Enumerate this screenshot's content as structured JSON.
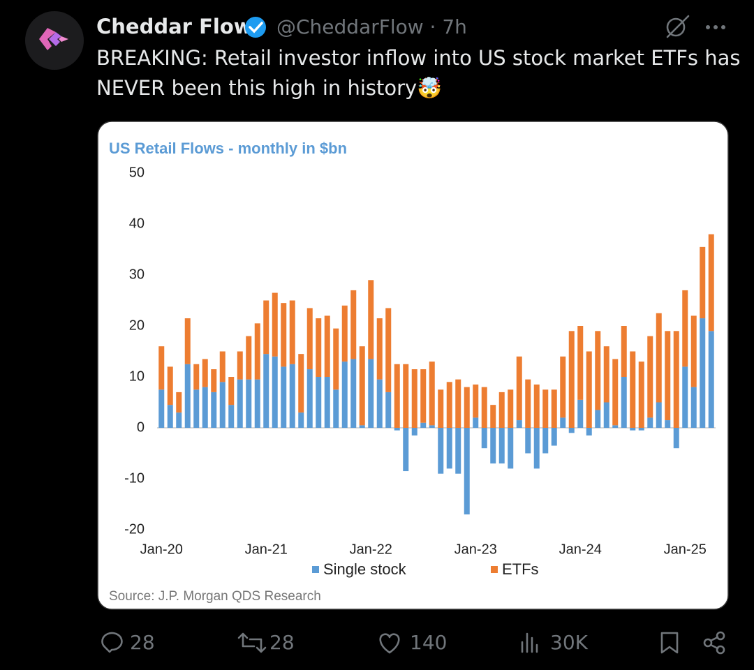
{
  "tweet": {
    "name": "Cheddar Flow",
    "meta": "@CheddarFlow · 7h",
    "text_lines": [
      "BREAKING: Retail investor inflow into US stock market ETFs has",
      "NEVER been this high in history🤯"
    ],
    "actions": {
      "replies": "28",
      "reposts": "28",
      "likes": "140",
      "views": "30K"
    }
  },
  "chart_data": {
    "type": "stacked-bar",
    "title": "US Retail Flows - monthly in $bn",
    "source": "Source: J.P. Morgan QDS Research",
    "categories": [
      "Jan-20",
      null,
      null,
      null,
      null,
      null,
      null,
      null,
      null,
      null,
      null,
      null,
      "Jan-21",
      null,
      null,
      null,
      null,
      null,
      null,
      null,
      null,
      null,
      null,
      null,
      "Jan-22",
      null,
      null,
      null,
      null,
      null,
      null,
      null,
      null,
      null,
      null,
      null,
      "Jan-23",
      null,
      null,
      null,
      null,
      null,
      null,
      null,
      null,
      null,
      null,
      null,
      "Jan-24",
      null,
      null,
      null,
      null,
      null,
      null,
      null,
      null,
      null,
      null,
      null,
      "Jan-25",
      null,
      null,
      null
    ],
    "series": [
      {
        "name": "Single stock",
        "color": "#5b9bd5",
        "values": [
          7.5,
          4.5,
          3,
          12.5,
          7.5,
          8,
          7,
          9,
          4.5,
          9.5,
          9.5,
          9.5,
          14.5,
          14,
          12,
          12.5,
          3,
          11.5,
          10,
          10,
          7.5,
          13,
          13.5,
          0.5,
          13.5,
          9.5,
          7,
          -0.5,
          -8.5,
          -1.5,
          1,
          0.5,
          -9,
          -8,
          -9,
          -17,
          2,
          -4,
          -7,
          -7,
          -8,
          1.5,
          -5,
          -8,
          -5,
          -3.5,
          2,
          -1,
          5.5,
          -1.5,
          3.5,
          5,
          0.5,
          10,
          -0.5,
          -0.5,
          2,
          5,
          1.5,
          -4,
          12,
          8,
          21.5,
          19
        ]
      },
      {
        "name": "ETFs",
        "color": "#ed7d31",
        "values": [
          8.5,
          7.5,
          4,
          9,
          5,
          5.5,
          4.5,
          6,
          5.5,
          5.5,
          8.5,
          11,
          10.5,
          12.5,
          12.5,
          12.5,
          11.5,
          12,
          11.5,
          12,
          12,
          11,
          13.5,
          15.5,
          15.5,
          12,
          16.5,
          12.5,
          12.5,
          11.5,
          10.5,
          12.5,
          7.5,
          9,
          9.5,
          8,
          6.5,
          8,
          4.5,
          7,
          7.5,
          12.5,
          9.5,
          8.5,
          7.5,
          7.5,
          12,
          19,
          14.5,
          15,
          15.5,
          11,
          13,
          10,
          15,
          13,
          16,
          17.5,
          17.5,
          19,
          15,
          14,
          14,
          19
        ]
      }
    ],
    "ylim": [
      -20,
      50
    ],
    "yticks": [
      -20,
      -10,
      0,
      10,
      20,
      30,
      40,
      50
    ],
    "grid": false,
    "legend": "bottom"
  }
}
